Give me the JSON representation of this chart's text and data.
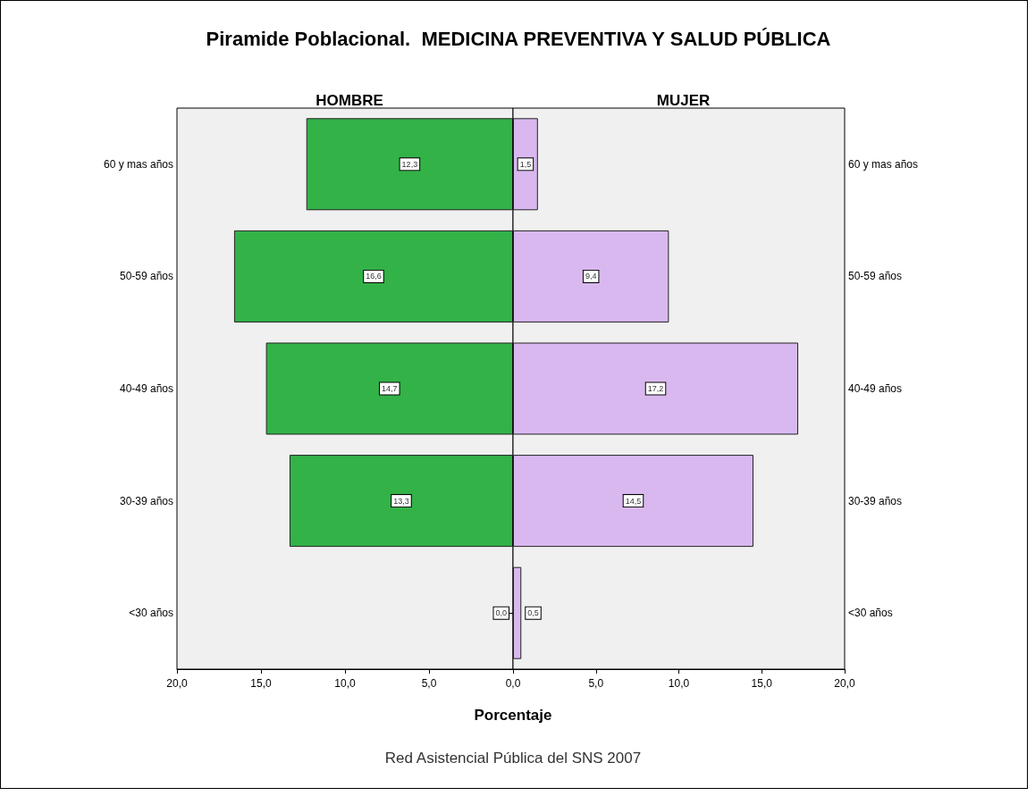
{
  "chart_data": [
    {
      "type": "bar",
      "orientation": "horizontal",
      "title": "Piramide Poblacional.  MEDICINA PREVENTIVA Y SALUD PÚBLICA",
      "subtitle": "HOMBRE",
      "xlabel": "Porcentaje",
      "annotations": [
        "Red Asistencial Pública del SNS 2007"
      ],
      "categories": [
        "60 y mas años",
        "50-59 años",
        "40-49 años",
        "30-39 años",
        "<30 años"
      ],
      "series": [
        {
          "color": "#33b248",
          "values": [
            12.3,
            16.6,
            14.7,
            13.3,
            0.0
          ],
          "value_labels": [
            "12,3",
            "16,6",
            "14,7",
            "13,3",
            "0,0"
          ]
        }
      ],
      "xlim": [
        20,
        0
      ],
      "xticks": [
        {
          "value": 20,
          "label": "20,0"
        },
        {
          "value": 15,
          "label": "15,0"
        },
        {
          "value": 10,
          "label": "10,0"
        },
        {
          "value": 5,
          "label": "5,0"
        },
        {
          "value": 0,
          "label": "0,0"
        }
      ]
    },
    {
      "type": "bar",
      "orientation": "horizontal",
      "subtitle": "MUJER",
      "categories": [
        "60 y mas años",
        "50-59 años",
        "40-49 años",
        "30-39 años",
        "<30 años"
      ],
      "series": [
        {
          "color": "#d9b8f0",
          "values": [
            1.5,
            9.4,
            17.2,
            14.5,
            0.5
          ],
          "value_labels": [
            "1,5",
            "9,4",
            "17,2",
            "14,5",
            "0,5"
          ]
        }
      ],
      "xlim": [
        0,
        20
      ],
      "xticks": [
        {
          "value": 0,
          "label": null
        },
        {
          "value": 5,
          "label": "5,0"
        },
        {
          "value": 10,
          "label": "10,0"
        },
        {
          "value": 15,
          "label": "15,0"
        },
        {
          "value": 20,
          "label": "20,0"
        }
      ]
    }
  ]
}
